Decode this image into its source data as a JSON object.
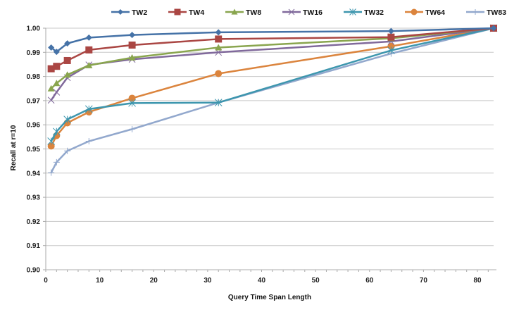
{
  "chart_data": {
    "type": "line",
    "title": "",
    "xlabel": "Query Time Span Length",
    "ylabel": "Recall at r=10",
    "xlim": [
      0,
      83
    ],
    "ylim": [
      0.9,
      1.0
    ],
    "x_ticks": [
      "0",
      "10",
      "20",
      "30",
      "40",
      "50",
      "60",
      "70",
      "80"
    ],
    "y_ticks": [
      "0.90",
      "0.91",
      "0.92",
      "0.93",
      "0.94",
      "0.95",
      "0.96",
      "0.97",
      "0.98",
      "0.99",
      "1.00"
    ],
    "grid": "horizontal",
    "legend_position": "top",
    "x": [
      1,
      2,
      4,
      8,
      16,
      32,
      64,
      83
    ],
    "series": [
      {
        "name": "TW2",
        "color": "#4572A7",
        "marker": "diamond",
        "values": [
          0.992,
          0.9902,
          0.9937,
          0.9961,
          0.9972,
          0.9983,
          0.9988,
          1.0
        ]
      },
      {
        "name": "TW4",
        "color": "#AA4643",
        "marker": "square",
        "values": [
          0.9832,
          0.9842,
          0.9866,
          0.991,
          0.993,
          0.9955,
          0.9963,
          1.0
        ]
      },
      {
        "name": "TW8",
        "color": "#89A54E",
        "marker": "triangle",
        "values": [
          0.975,
          0.9772,
          0.9807,
          0.9846,
          0.9878,
          0.992,
          0.9958,
          1.0
        ]
      },
      {
        "name": "TW16",
        "color": "#80699B",
        "marker": "x",
        "values": [
          0.9702,
          0.9735,
          0.9795,
          0.9848,
          0.9871,
          0.99,
          0.9945,
          1.0
        ]
      },
      {
        "name": "TW32",
        "color": "#3D96AE",
        "marker": "star",
        "values": [
          0.9532,
          0.9572,
          0.9622,
          0.9665,
          0.969,
          0.9692,
          0.9908,
          1.0
        ]
      },
      {
        "name": "TW64",
        "color": "#DB843D",
        "marker": "circle",
        "values": [
          0.9512,
          0.9555,
          0.9608,
          0.9653,
          0.971,
          0.9812,
          0.9925,
          1.0
        ]
      },
      {
        "name": "TW83",
        "color": "#92A8CD",
        "marker": "plus",
        "values": [
          0.9402,
          0.9445,
          0.9492,
          0.9532,
          0.9582,
          0.9692,
          0.9895,
          1.0
        ]
      }
    ]
  }
}
